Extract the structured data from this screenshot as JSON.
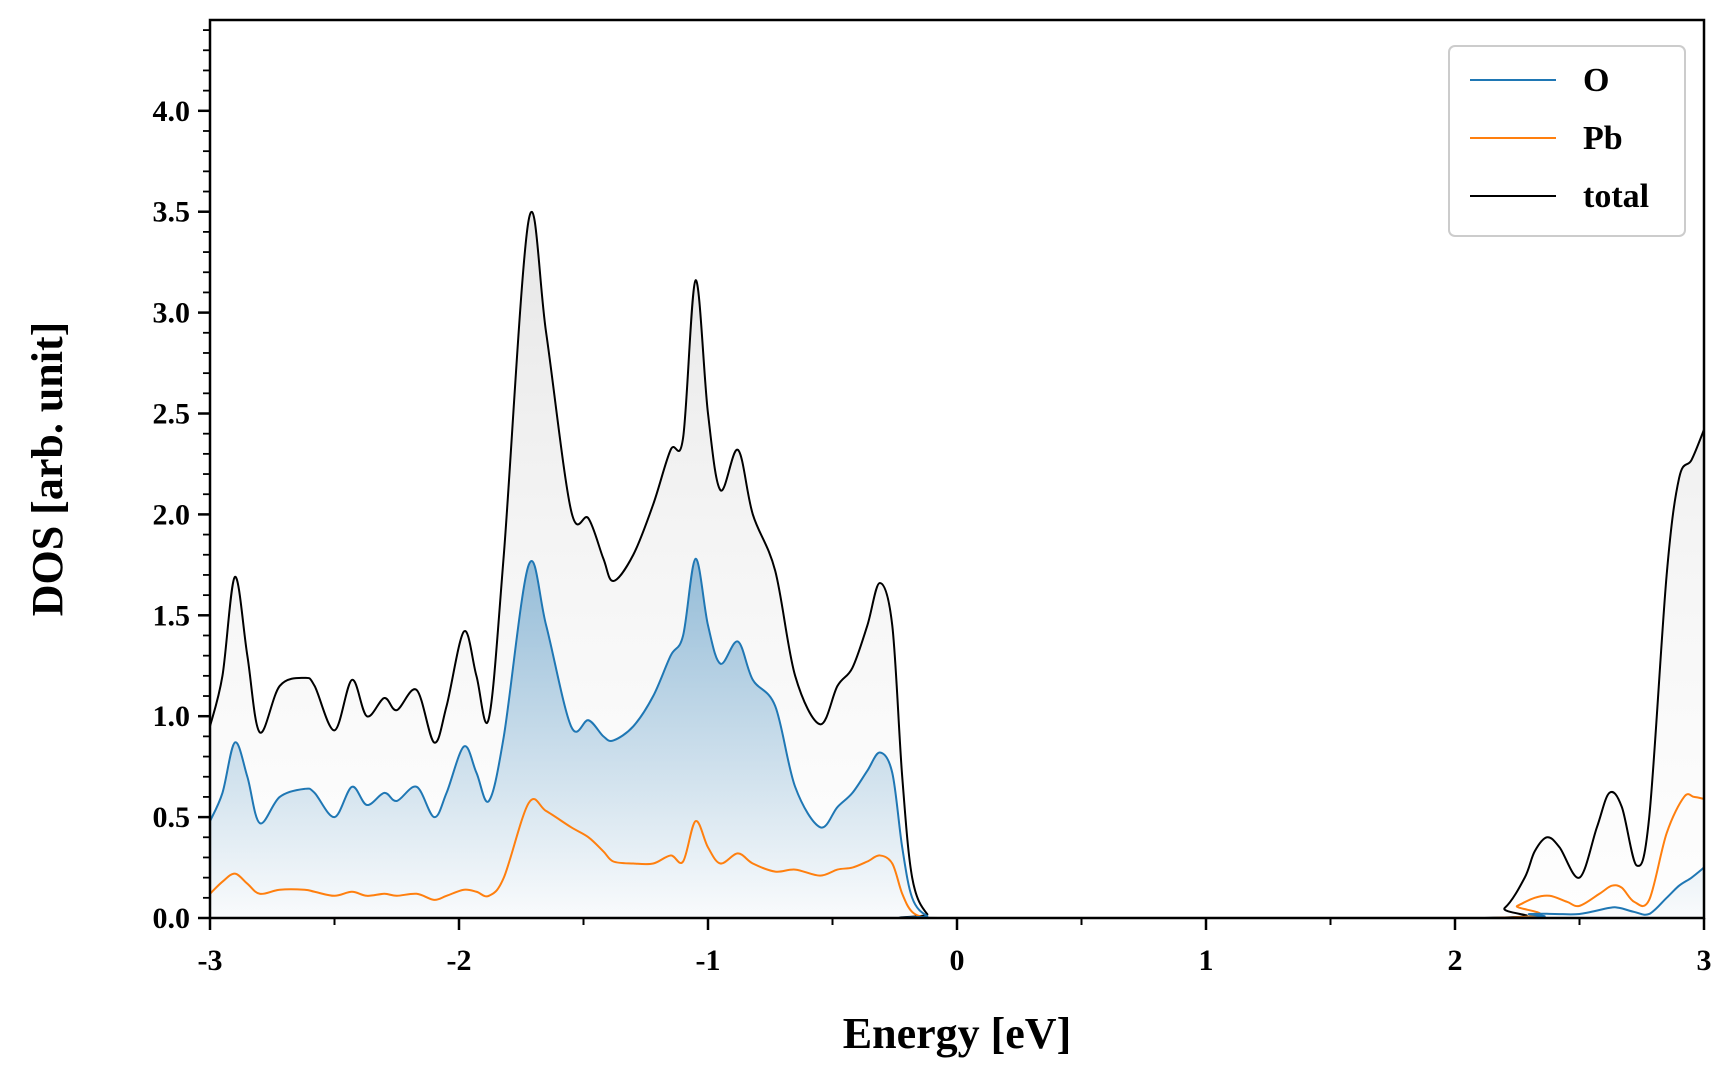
{
  "chart_data": {
    "type": "line",
    "title": "",
    "xlabel": "Energy [eV]",
    "ylabel": "DOS [arb. unit]",
    "xlim": [
      -3,
      3
    ],
    "ylim": [
      0,
      4.45
    ],
    "x_ticks": [
      -3,
      -2,
      -1,
      0,
      1,
      2,
      3
    ],
    "x_tick_labels": [
      "-3",
      "-2",
      "-1",
      "0",
      "1",
      "2",
      "3"
    ],
    "y_ticks": [
      0,
      0.5,
      1,
      1.5,
      2,
      2.5,
      3,
      3.5,
      4
    ],
    "y_tick_labels": [
      "0.0",
      "0.5",
      "1.0",
      "1.5",
      "2.0",
      "2.5",
      "3.0",
      "3.5",
      "4.0"
    ],
    "grid": false,
    "legend_position": "top-right",
    "series": [
      {
        "name": "O",
        "color": "#1f77b4",
        "fill": "gradient",
        "points": [
          [
            -3.0,
            0.48
          ],
          [
            -2.95,
            0.62
          ],
          [
            -2.9,
            0.87
          ],
          [
            -2.85,
            0.7
          ],
          [
            -2.8,
            0.47
          ],
          [
            -2.72,
            0.6
          ],
          [
            -2.62,
            0.64
          ],
          [
            -2.58,
            0.62
          ],
          [
            -2.5,
            0.5
          ],
          [
            -2.43,
            0.65
          ],
          [
            -2.37,
            0.56
          ],
          [
            -2.3,
            0.62
          ],
          [
            -2.25,
            0.58
          ],
          [
            -2.17,
            0.65
          ],
          [
            -2.1,
            0.5
          ],
          [
            -2.05,
            0.62
          ],
          [
            -1.98,
            0.85
          ],
          [
            -1.93,
            0.72
          ],
          [
            -1.88,
            0.58
          ],
          [
            -1.82,
            0.9
          ],
          [
            -1.72,
            1.75
          ],
          [
            -1.65,
            1.45
          ],
          [
            -1.55,
            0.95
          ],
          [
            -1.48,
            0.98
          ],
          [
            -1.42,
            0.9
          ],
          [
            -1.38,
            0.88
          ],
          [
            -1.3,
            0.95
          ],
          [
            -1.22,
            1.1
          ],
          [
            -1.15,
            1.3
          ],
          [
            -1.1,
            1.4
          ],
          [
            -1.05,
            1.78
          ],
          [
            -1.0,
            1.45
          ],
          [
            -0.95,
            1.26
          ],
          [
            -0.88,
            1.37
          ],
          [
            -0.82,
            1.18
          ],
          [
            -0.73,
            1.05
          ],
          [
            -0.65,
            0.65
          ],
          [
            -0.55,
            0.45
          ],
          [
            -0.48,
            0.55
          ],
          [
            -0.42,
            0.62
          ],
          [
            -0.36,
            0.73
          ],
          [
            -0.31,
            0.82
          ],
          [
            -0.26,
            0.72
          ],
          [
            -0.22,
            0.35
          ],
          [
            -0.18,
            0.1
          ],
          [
            -0.12,
            0.01
          ],
          [
            -0.05,
            0.0
          ],
          [
            2.15,
            0.0
          ],
          [
            2.3,
            0.02
          ],
          [
            2.4,
            0.02
          ],
          [
            2.5,
            0.02
          ],
          [
            2.62,
            0.05
          ],
          [
            2.66,
            0.05
          ],
          [
            2.72,
            0.03
          ],
          [
            2.78,
            0.02
          ],
          [
            2.85,
            0.1
          ],
          [
            2.9,
            0.16
          ],
          [
            2.95,
            0.2
          ],
          [
            3.0,
            0.25
          ]
        ]
      },
      {
        "name": "Pb",
        "color": "#ff7f0e",
        "fill": "none",
        "points": [
          [
            -3.0,
            0.12
          ],
          [
            -2.95,
            0.18
          ],
          [
            -2.9,
            0.22
          ],
          [
            -2.85,
            0.17
          ],
          [
            -2.8,
            0.12
          ],
          [
            -2.72,
            0.14
          ],
          [
            -2.62,
            0.14
          ],
          [
            -2.58,
            0.13
          ],
          [
            -2.5,
            0.11
          ],
          [
            -2.43,
            0.13
          ],
          [
            -2.37,
            0.11
          ],
          [
            -2.3,
            0.12
          ],
          [
            -2.25,
            0.11
          ],
          [
            -2.17,
            0.12
          ],
          [
            -2.1,
            0.09
          ],
          [
            -2.05,
            0.11
          ],
          [
            -1.98,
            0.14
          ],
          [
            -1.93,
            0.13
          ],
          [
            -1.88,
            0.11
          ],
          [
            -1.82,
            0.2
          ],
          [
            -1.72,
            0.57
          ],
          [
            -1.65,
            0.53
          ],
          [
            -1.55,
            0.45
          ],
          [
            -1.48,
            0.4
          ],
          [
            -1.42,
            0.33
          ],
          [
            -1.38,
            0.28
          ],
          [
            -1.3,
            0.27
          ],
          [
            -1.22,
            0.27
          ],
          [
            -1.15,
            0.31
          ],
          [
            -1.1,
            0.28
          ],
          [
            -1.05,
            0.48
          ],
          [
            -1.0,
            0.35
          ],
          [
            -0.95,
            0.27
          ],
          [
            -0.88,
            0.32
          ],
          [
            -0.82,
            0.27
          ],
          [
            -0.73,
            0.23
          ],
          [
            -0.65,
            0.24
          ],
          [
            -0.55,
            0.21
          ],
          [
            -0.48,
            0.24
          ],
          [
            -0.42,
            0.25
          ],
          [
            -0.36,
            0.28
          ],
          [
            -0.31,
            0.31
          ],
          [
            -0.26,
            0.27
          ],
          [
            -0.22,
            0.12
          ],
          [
            -0.18,
            0.03
          ],
          [
            -0.12,
            0.0
          ],
          [
            -0.05,
            0.0
          ],
          [
            2.15,
            0.0
          ],
          [
            2.25,
            0.06
          ],
          [
            2.32,
            0.1
          ],
          [
            2.38,
            0.11
          ],
          [
            2.45,
            0.08
          ],
          [
            2.5,
            0.06
          ],
          [
            2.58,
            0.12
          ],
          [
            2.63,
            0.16
          ],
          [
            2.67,
            0.15
          ],
          [
            2.72,
            0.08
          ],
          [
            2.78,
            0.09
          ],
          [
            2.85,
            0.42
          ],
          [
            2.92,
            0.6
          ],
          [
            2.96,
            0.6
          ],
          [
            3.0,
            0.59
          ]
        ]
      },
      {
        "name": "total",
        "color": "#000000",
        "fill": "light-gray",
        "points": [
          [
            -3.0,
            0.95
          ],
          [
            -2.95,
            1.2
          ],
          [
            -2.9,
            1.69
          ],
          [
            -2.85,
            1.3
          ],
          [
            -2.8,
            0.92
          ],
          [
            -2.72,
            1.15
          ],
          [
            -2.62,
            1.19
          ],
          [
            -2.58,
            1.15
          ],
          [
            -2.5,
            0.93
          ],
          [
            -2.43,
            1.18
          ],
          [
            -2.37,
            1.0
          ],
          [
            -2.3,
            1.09
          ],
          [
            -2.25,
            1.03
          ],
          [
            -2.17,
            1.13
          ],
          [
            -2.1,
            0.87
          ],
          [
            -2.05,
            1.05
          ],
          [
            -1.98,
            1.42
          ],
          [
            -1.93,
            1.2
          ],
          [
            -1.88,
            0.99
          ],
          [
            -1.82,
            1.8
          ],
          [
            -1.72,
            3.46
          ],
          [
            -1.65,
            2.9
          ],
          [
            -1.55,
            2.02
          ],
          [
            -1.48,
            1.98
          ],
          [
            -1.42,
            1.78
          ],
          [
            -1.38,
            1.67
          ],
          [
            -1.3,
            1.8
          ],
          [
            -1.22,
            2.05
          ],
          [
            -1.15,
            2.32
          ],
          [
            -1.1,
            2.38
          ],
          [
            -1.05,
            3.16
          ],
          [
            -1.0,
            2.5
          ],
          [
            -0.95,
            2.12
          ],
          [
            -0.88,
            2.32
          ],
          [
            -0.82,
            2.0
          ],
          [
            -0.73,
            1.72
          ],
          [
            -0.65,
            1.2
          ],
          [
            -0.55,
            0.96
          ],
          [
            -0.48,
            1.15
          ],
          [
            -0.42,
            1.24
          ],
          [
            -0.36,
            1.45
          ],
          [
            -0.31,
            1.66
          ],
          [
            -0.26,
            1.45
          ],
          [
            -0.22,
            0.7
          ],
          [
            -0.18,
            0.2
          ],
          [
            -0.12,
            0.02
          ],
          [
            -0.05,
            0.0
          ],
          [
            2.1,
            0.0
          ],
          [
            2.2,
            0.05
          ],
          [
            2.28,
            0.2
          ],
          [
            2.32,
            0.33
          ],
          [
            2.37,
            0.4
          ],
          [
            2.42,
            0.35
          ],
          [
            2.5,
            0.2
          ],
          [
            2.57,
            0.45
          ],
          [
            2.62,
            0.62
          ],
          [
            2.67,
            0.55
          ],
          [
            2.73,
            0.26
          ],
          [
            2.78,
            0.5
          ],
          [
            2.85,
            1.7
          ],
          [
            2.9,
            2.18
          ],
          [
            2.95,
            2.27
          ],
          [
            3.0,
            2.42
          ]
        ]
      }
    ]
  }
}
